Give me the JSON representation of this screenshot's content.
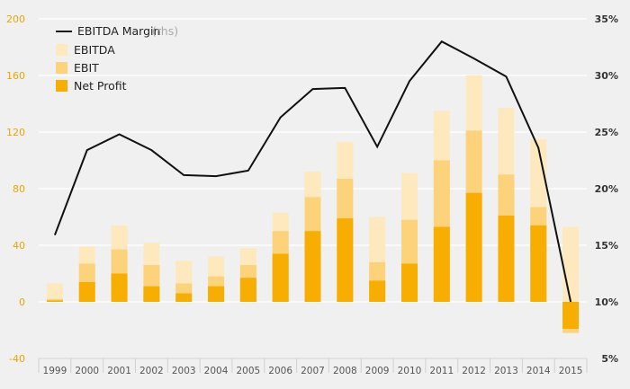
{
  "chart_data": {
    "type": "bar",
    "categories": [
      "1999",
      "2000",
      "2001",
      "2002",
      "2003",
      "2004",
      "2005",
      "2006",
      "2007",
      "2008",
      "2009",
      "2010",
      "2011",
      "2012",
      "2013",
      "2014",
      "2015"
    ],
    "series": [
      {
        "name": "EBITDA",
        "color": "#fde9bd",
        "values": [
          13,
          39,
          54,
          42,
          29,
          32,
          38,
          63,
          92,
          113,
          60,
          91,
          135,
          160,
          137,
          115,
          53
        ]
      },
      {
        "name": "EBIT",
        "color": "#fcd27a",
        "values": [
          2,
          27,
          37,
          26,
          13,
          18,
          26,
          50,
          74,
          87,
          28,
          58,
          100,
          121,
          90,
          67,
          -22
        ]
      },
      {
        "name": "Net Profit",
        "color": "#f7ae00",
        "values": [
          1,
          14,
          20,
          11,
          6,
          11,
          17,
          34,
          50,
          59,
          15,
          27,
          53,
          77,
          61,
          54,
          -19
        ]
      }
    ],
    "line": {
      "name": "EBITDA Margin",
      "note": "(rhs)",
      "color": "#111111",
      "values": [
        15.9,
        23.4,
        24.8,
        23.4,
        21.2,
        21.1,
        21.6,
        26.3,
        28.8,
        28.9,
        23.7,
        29.5,
        33.0,
        31.5,
        29.9,
        23.6,
        10.0
      ]
    },
    "ylim": [
      -40,
      200
    ],
    "y_ticks": [
      "-40",
      "0",
      "40",
      "80",
      "120",
      "160",
      "200"
    ],
    "y2lim": [
      5,
      35
    ],
    "y2_ticks": [
      "5%",
      "10%",
      "15%",
      "20%",
      "25%",
      "30%",
      "35%"
    ],
    "legend_position": "top-left",
    "grid": true
  }
}
